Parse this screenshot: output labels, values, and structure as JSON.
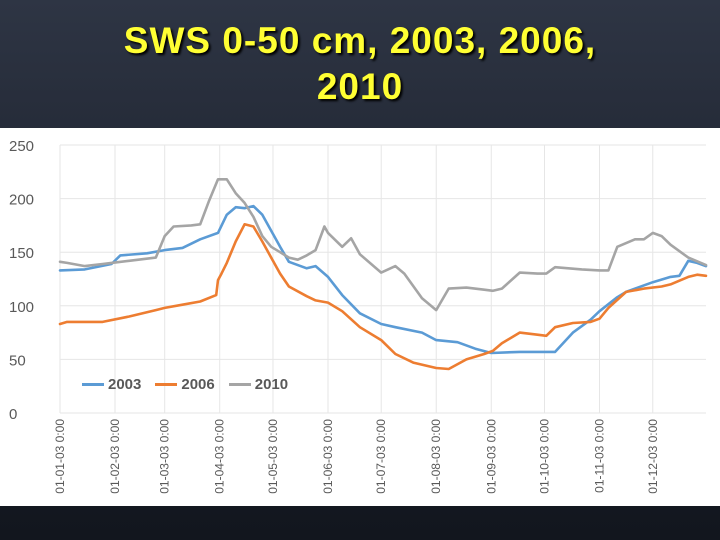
{
  "title": "SWS 0-50 cm, 2003, 2006, 2010",
  "title_lines": [
    "SWS 0-50 cm, 2003, 2006,",
    "2010"
  ],
  "colors": {
    "title": "#ffff33",
    "series_2003": "#5b9bd5",
    "series_2006": "#ed7d31",
    "series_2010": "#a5a5a5",
    "grid": "#e6e6e6",
    "axis_text": "#595959"
  },
  "chart_data": {
    "type": "line",
    "title": "SWS 0-50 cm, 2003, 2006, 2010",
    "xlabel": "",
    "ylabel": "",
    "ylim": [
      0,
      250
    ],
    "yticks": [
      0,
      50,
      100,
      150,
      200,
      250
    ],
    "x_domain": [
      1,
      365
    ],
    "grid": "horizontal",
    "legend_position": "bottom-left",
    "x_ticks": [
      {
        "label": "01-01-03 0:00",
        "day": 1
      },
      {
        "label": "01-02-03 0:00",
        "day": 32
      },
      {
        "label": "01-03-03 0:00",
        "day": 60
      },
      {
        "label": "01-04-03 0:00",
        "day": 91
      },
      {
        "label": "01-05-03 0:00",
        "day": 121
      },
      {
        "label": "01-06-03 0:00",
        "day": 152
      },
      {
        "label": "01-07-03 0:00",
        "day": 182
      },
      {
        "label": "01-08-03 0:00",
        "day": 213
      },
      {
        "label": "01-09-03 0:00",
        "day": 244
      },
      {
        "label": "01-10-03 0:00",
        "day": 274
      },
      {
        "label": "01-11-03 0:00",
        "day": 305
      },
      {
        "label": "01-12-03 0:00",
        "day": 335
      }
    ],
    "series": [
      {
        "name": "2003",
        "color": "#5b9bd5",
        "x": [
          1,
          15,
          30,
          35,
          50,
          60,
          70,
          80,
          90,
          95,
          100,
          105,
          110,
          115,
          120,
          125,
          130,
          140,
          145,
          152,
          160,
          170,
          182,
          190,
          205,
          213,
          225,
          235,
          244,
          260,
          274,
          280,
          290,
          300,
          305,
          315,
          320,
          335,
          345,
          350,
          355,
          360,
          365
        ],
        "y": [
          133,
          134,
          139,
          147,
          149,
          152,
          154,
          162,
          168,
          185,
          192,
          191,
          193,
          185,
          170,
          155,
          141,
          135,
          137,
          127,
          110,
          93,
          83,
          80,
          75,
          68,
          66,
          60,
          56,
          57,
          57,
          57,
          75,
          87,
          95,
          108,
          113,
          122,
          127,
          128,
          142,
          140,
          137
        ]
      },
      {
        "name": "2006",
        "color": "#ed7d31",
        "x": [
          1,
          5,
          25,
          40,
          55,
          60,
          70,
          80,
          89,
          90,
          92,
          95,
          100,
          105,
          110,
          115,
          120,
          125,
          130,
          140,
          145,
          152,
          160,
          170,
          182,
          190,
          200,
          213,
          220,
          230,
          240,
          245,
          250,
          260,
          270,
          275,
          280,
          290,
          300,
          305,
          310,
          320,
          330,
          340,
          345,
          355,
          360,
          365
        ],
        "y": [
          83,
          85,
          85,
          90,
          96,
          98,
          101,
          104,
          110,
          124,
          130,
          140,
          160,
          176,
          174,
          160,
          145,
          130,
          118,
          109,
          105,
          103,
          95,
          80,
          68,
          55,
          47,
          42,
          41,
          50,
          55,
          58,
          65,
          75,
          73,
          72,
          80,
          84,
          85,
          88,
          98,
          113,
          116,
          118,
          120,
          127,
          129,
          128
        ],
        "smooth": true
      },
      {
        "name": "2010",
        "color": "#a5a5a5",
        "x": [
          1,
          5,
          15,
          25,
          30,
          40,
          55,
          60,
          65,
          75,
          80,
          85,
          90,
          95,
          100,
          105,
          110,
          115,
          120,
          125,
          130,
          135,
          140,
          145,
          150,
          152,
          160,
          165,
          170,
          182,
          190,
          195,
          205,
          213,
          220,
          230,
          240,
          245,
          250,
          260,
          270,
          275,
          280,
          295,
          305,
          310,
          315,
          325,
          330,
          335,
          340,
          345,
          355,
          365
        ],
        "y": [
          141,
          140,
          137,
          139,
          140,
          142,
          145,
          165,
          174,
          175,
          176,
          198,
          218,
          218,
          205,
          196,
          183,
          165,
          155,
          150,
          145,
          143,
          147,
          152,
          174,
          168,
          155,
          163,
          148,
          131,
          137,
          130,
          107,
          96,
          116,
          117,
          115,
          114,
          116,
          131,
          130,
          130,
          136,
          134,
          133,
          133,
          155,
          162,
          162,
          168,
          165,
          157,
          145,
          138
        ],
        "smooth": true
      }
    ]
  }
}
